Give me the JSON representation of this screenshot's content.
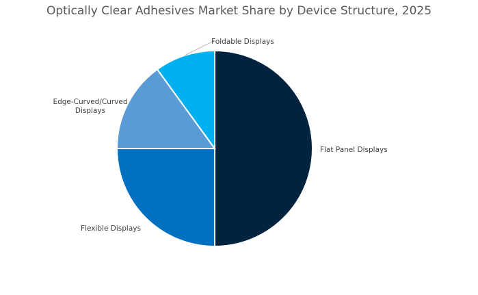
{
  "chart_data": {
    "type": "pie",
    "title": "Optically Clear Adhesives Market Share by Device Structure, 2025",
    "start_angle_deg": 0,
    "direction": "clockwise",
    "legend": "none",
    "slices": [
      {
        "label": "Flat Panel Displays",
        "value": 50,
        "color": "#002340"
      },
      {
        "label": "Flexible Displays",
        "value": 25,
        "color": "#0070C0"
      },
      {
        "label": "Edge-Curved/Curved Displays",
        "value": 15,
        "color": "#5B9BD5"
      },
      {
        "label": "Foldable Displays",
        "value": 10,
        "color": "#00B0F0"
      }
    ]
  }
}
